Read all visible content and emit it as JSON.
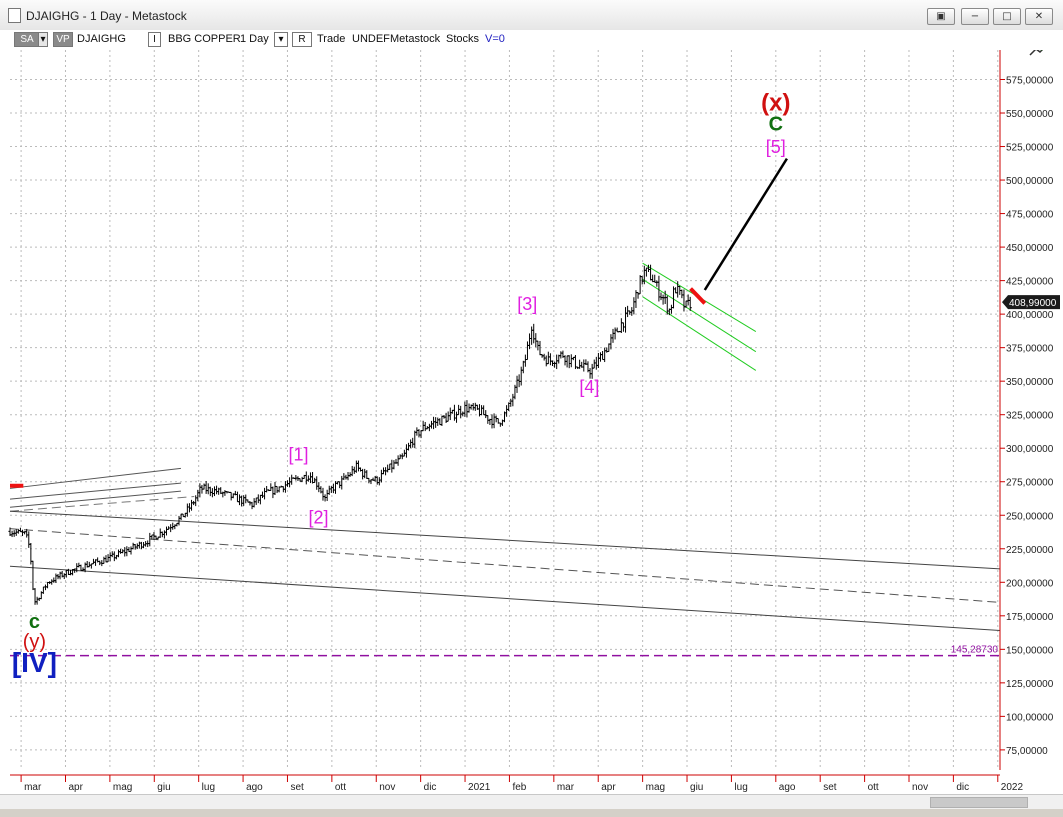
{
  "window": {
    "title": "DJAIGHG - 1 Day - Metastock",
    "buttons": [
      "restore",
      "minimize",
      "maximize",
      "close"
    ]
  },
  "toolbar": {
    "sa": "SA",
    "vp": "VP",
    "symbol": "DJAIGHG",
    "i_box": "I",
    "description": "BBG COPPER",
    "period": "1 Day",
    "r_box": "R",
    "trade": "Trade",
    "undef": "UNDEF",
    "metastock": "Metastock",
    "stocks": "Stocks",
    "v_label": "V=0"
  },
  "colors": {
    "price_bars": "#000000",
    "axis_line": "#cc0000",
    "grid": "#bbbbbb",
    "wave_magenta": "#e020e0",
    "wave_green": "#107010",
    "wave_red": "#d01010",
    "wave_blue": "#1020c0",
    "channel_green": "#22cc22",
    "support_line": "#9010a0"
  },
  "chart_data": {
    "type": "ohlc",
    "y_ticks": [
      "575,00000",
      "550,00000",
      "525,00000",
      "500,00000",
      "475,00000",
      "450,00000",
      "425,00000",
      "400,00000",
      "375,00000",
      "350,00000",
      "325,00000",
      "300,00000",
      "275,00000",
      "250,00000",
      "225,00000",
      "200,00000",
      "175,00000",
      "150,00000",
      "125,00000",
      "100,00000",
      "75,00000"
    ],
    "ylim": [
      60,
      597
    ],
    "x_ticks": [
      "mar",
      "apr",
      "mag",
      "giu",
      "lug",
      "ago",
      "set",
      "ott",
      "nov",
      "dic",
      "2021",
      "feb",
      "mar",
      "apr",
      "mag",
      "giu",
      "lug",
      "ago",
      "set",
      "ott",
      "nov",
      "dic",
      "2022"
    ],
    "x_tick_month_index": [
      0,
      1,
      2,
      3,
      4,
      5,
      6,
      7,
      8,
      9,
      10,
      11,
      12,
      13,
      14,
      15,
      16,
      17,
      18,
      19,
      20,
      21,
      22
    ],
    "xlim_months": [
      -0.25,
      22.05
    ],
    "current_price_label": "408,99000",
    "current_price": 409,
    "support_level_label": "145,28730",
    "support_level": 145.3,
    "price_path": [
      {
        "m": -0.25,
        "c": 238
      },
      {
        "m": 0.1,
        "c": 236
      },
      {
        "m": 0.2,
        "c": 225
      },
      {
        "m": 0.28,
        "c": 190
      },
      {
        "m": 0.32,
        "c": 185
      },
      {
        "m": 0.6,
        "c": 200
      },
      {
        "m": 1.0,
        "c": 207
      },
      {
        "m": 1.5,
        "c": 213
      },
      {
        "m": 2.0,
        "c": 218
      },
      {
        "m": 2.4,
        "c": 224
      },
      {
        "m": 2.8,
        "c": 230
      },
      {
        "m": 3.2,
        "c": 238
      },
      {
        "m": 3.6,
        "c": 248
      },
      {
        "m": 3.85,
        "c": 258
      },
      {
        "m": 4.05,
        "c": 270
      },
      {
        "m": 4.4,
        "c": 268
      },
      {
        "m": 4.9,
        "c": 262
      },
      {
        "m": 5.2,
        "c": 258
      },
      {
        "m": 5.5,
        "c": 266
      },
      {
        "m": 5.9,
        "c": 272
      },
      {
        "m": 6.3,
        "c": 278
      },
      {
        "m": 6.5,
        "c": 280
      },
      {
        "m": 6.7,
        "c": 272
      },
      {
        "m": 6.85,
        "c": 262
      },
      {
        "m": 7.0,
        "c": 270
      },
      {
        "m": 7.3,
        "c": 277
      },
      {
        "m": 7.55,
        "c": 286
      },
      {
        "m": 7.8,
        "c": 278
      },
      {
        "m": 8.0,
        "c": 276
      },
      {
        "m": 8.3,
        "c": 285
      },
      {
        "m": 8.6,
        "c": 293
      },
      {
        "m": 8.85,
        "c": 308
      },
      {
        "m": 9.05,
        "c": 315
      },
      {
        "m": 9.3,
        "c": 319
      },
      {
        "m": 9.6,
        "c": 323
      },
      {
        "m": 10.0,
        "c": 330
      },
      {
        "m": 10.3,
        "c": 328
      },
      {
        "m": 10.55,
        "c": 322
      },
      {
        "m": 10.75,
        "c": 319
      },
      {
        "m": 10.95,
        "c": 328
      },
      {
        "m": 11.15,
        "c": 345
      },
      {
        "m": 11.35,
        "c": 365
      },
      {
        "m": 11.5,
        "c": 392
      },
      {
        "m": 11.65,
        "c": 372
      },
      {
        "m": 11.9,
        "c": 365
      },
      {
        "m": 12.2,
        "c": 370
      },
      {
        "m": 12.45,
        "c": 364
      },
      {
        "m": 12.65,
        "c": 360
      },
      {
        "m": 12.85,
        "c": 358
      },
      {
        "m": 13.0,
        "c": 365
      },
      {
        "m": 13.25,
        "c": 378
      },
      {
        "m": 13.5,
        "c": 392
      },
      {
        "m": 13.75,
        "c": 402
      },
      {
        "m": 13.9,
        "c": 420
      },
      {
        "m": 14.05,
        "c": 432
      },
      {
        "m": 14.2,
        "c": 428
      },
      {
        "m": 14.35,
        "c": 418
      },
      {
        "m": 14.5,
        "c": 410
      },
      {
        "m": 14.62,
        "c": 402
      },
      {
        "m": 14.72,
        "c": 420
      },
      {
        "m": 14.85,
        "c": 414
      },
      {
        "m": 14.95,
        "c": 405
      },
      {
        "m": 15.1,
        "c": 409
      }
    ],
    "lines": [
      {
        "id": "fan-upper-1",
        "m1": -0.25,
        "v1": 270,
        "m2": 3.6,
        "v2": 285,
        "color": "#555555",
        "dash": false
      },
      {
        "id": "fan-upper-2",
        "m1": -0.25,
        "v1": 262,
        "m2": 3.6,
        "v2": 274,
        "color": "#555555",
        "dash": false
      },
      {
        "id": "fan-upper-3",
        "m1": -0.25,
        "v1": 256,
        "m2": 3.6,
        "v2": 268,
        "color": "#555555",
        "dash": false
      },
      {
        "id": "fan-upper-dash",
        "m1": -0.25,
        "v1": 253,
        "m2": 3.9,
        "v2": 264,
        "color": "#777777",
        "dash": true
      },
      {
        "id": "trend-upper",
        "m1": -0.25,
        "v1": 253,
        "m2": 22.05,
        "v2": 210,
        "color": "#444444",
        "dash": false
      },
      {
        "id": "trend-middle-dash",
        "m1": -0.25,
        "v1": 240,
        "m2": 22.05,
        "v2": 185,
        "color": "#555555",
        "dash": true
      },
      {
        "id": "trend-lower",
        "m1": -0.25,
        "v1": 212,
        "m2": 22.05,
        "v2": 164,
        "color": "#444444",
        "dash": false
      },
      {
        "id": "channel-top",
        "m1": 14.0,
        "v1": 438,
        "m2": 16.55,
        "v2": 387,
        "color": "#22cc22",
        "dash": false
      },
      {
        "id": "channel-mid",
        "m1": 14.0,
        "v1": 426,
        "m2": 16.55,
        "v2": 372,
        "color": "#22cc22",
        "dash": false
      },
      {
        "id": "channel-bottom",
        "m1": 14.0,
        "v1": 413,
        "m2": 16.55,
        "v2": 358,
        "color": "#22cc22",
        "dash": false
      },
      {
        "id": "projection",
        "m1": 15.4,
        "v1": 418,
        "m2": 17.25,
        "v2": 516,
        "color": "#000000",
        "dash": false,
        "width": 2.5
      },
      {
        "id": "red-marker-right",
        "m1": 15.08,
        "v1": 419,
        "m2": 15.4,
        "v2": 408,
        "color": "#ee1111",
        "dash": false,
        "width": 4
      },
      {
        "id": "red-marker-left",
        "m1": -0.25,
        "v1": 272,
        "m2": 0.05,
        "v2": 272,
        "color": "#ee1111",
        "dash": false,
        "width": 4
      },
      {
        "id": "support-line",
        "m1": -0.25,
        "v1": 145.3,
        "m2": 22.05,
        "v2": 145.3,
        "color": "#9010a0",
        "dash": true,
        "width": 1.5
      }
    ],
    "annotations": [
      {
        "text": "[1]",
        "m": 6.25,
        "v": 291,
        "color": "#e020e0",
        "size": 18
      },
      {
        "text": "[2]",
        "m": 6.7,
        "v": 244,
        "color": "#e020e0",
        "size": 18
      },
      {
        "text": "[3]",
        "m": 11.4,
        "v": 403,
        "color": "#e020e0",
        "size": 18
      },
      {
        "text": "[4]",
        "m": 12.8,
        "v": 341,
        "color": "#e020e0",
        "size": 18
      },
      {
        "text": "[5]",
        "m": 17.0,
        "v": 520,
        "color": "#e020e0",
        "size": 18
      },
      {
        "text": "C",
        "m": 17.0,
        "v": 537,
        "color": "#107010",
        "size": 20,
        "bold": true
      },
      {
        "text": "(x)",
        "m": 17.0,
        "v": 552,
        "color": "#d01010",
        "size": 24,
        "bold": true
      },
      {
        "text": "c",
        "m": 0.3,
        "v": 166,
        "color": "#107010",
        "size": 20,
        "bold": true
      },
      {
        "text": "(y)",
        "m": 0.3,
        "v": 151,
        "color": "#d01010",
        "size": 20
      },
      {
        "text": "[IV]",
        "m": 0.3,
        "v": 133,
        "color": "#1020c0",
        "size": 28,
        "bold": true
      }
    ]
  }
}
